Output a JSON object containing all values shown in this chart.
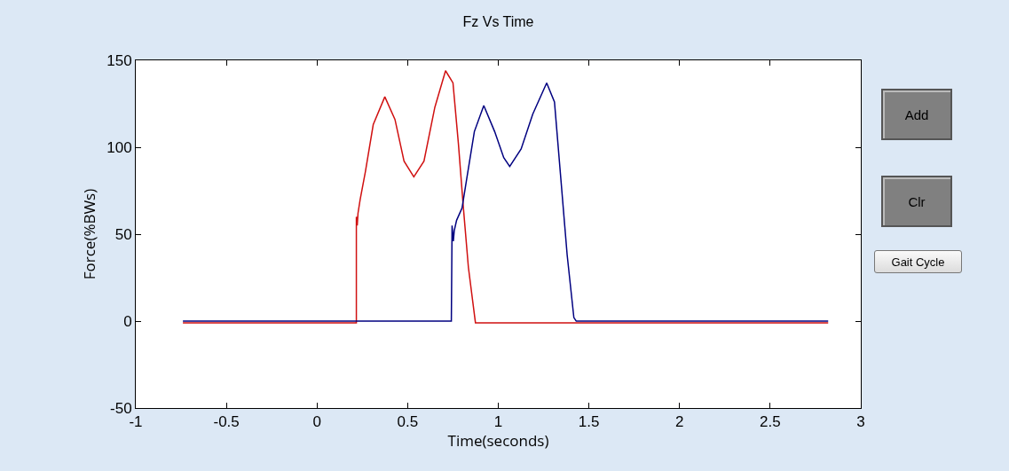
{
  "chart_data": {
    "type": "line",
    "title": "Fz Vs Time",
    "xlabel": "Time(seconds)",
    "ylabel": "Force(%BWs)",
    "xlim": [
      -1,
      3
    ],
    "xticks": [
      -1,
      -0.5,
      0,
      0.5,
      1,
      1.5,
      2,
      2.5,
      3
    ],
    "ylim": [
      -50,
      150
    ],
    "yticks": [
      -50,
      0,
      50,
      100,
      150
    ],
    "grid": false,
    "annotations": [
      "Add",
      "Clr",
      "Gait Cycle"
    ],
    "series": [
      {
        "color": "#d01010",
        "x": [
          -0.74,
          0.217,
          0.217,
          0.222,
          0.226,
          0.238,
          0.267,
          0.31,
          0.374,
          0.43,
          0.48,
          0.534,
          0.59,
          0.65,
          0.709,
          0.75,
          0.78,
          0.806,
          0.835,
          0.874,
          2.82
        ],
        "values": [
          -1,
          -1,
          60,
          55,
          62,
          70,
          86,
          113,
          129,
          116,
          92,
          83,
          92,
          123,
          144,
          137,
          102,
          67,
          31,
          -1,
          -1
        ]
      },
      {
        "color": "#000080",
        "x": [
          -0.74,
          0.741,
          0.745,
          0.752,
          0.757,
          0.77,
          0.8,
          0.826,
          0.868,
          0.92,
          0.98,
          1.03,
          1.063,
          1.126,
          1.19,
          1.267,
          1.31,
          1.345,
          1.38,
          1.417,
          1.43,
          2.82
        ],
        "values": [
          0,
          0,
          55,
          46,
          52,
          58,
          65,
          82,
          109,
          124,
          109,
          94,
          89,
          99,
          119,
          137,
          126,
          82,
          38,
          2,
          0,
          0
        ]
      }
    ]
  }
}
